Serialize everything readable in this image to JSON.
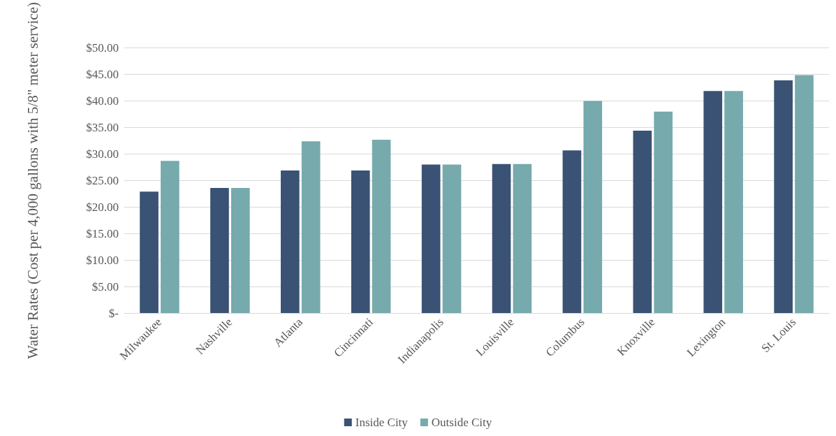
{
  "chart_data": {
    "type": "bar",
    "ylabel": "Water Rates (Cost per 4,000 gallons with 5/8\" meter service)",
    "categories": [
      "Milwaukee",
      "Nashville",
      "Atlanta",
      "Cincinnati",
      "Indianapolis",
      "Louisville",
      "Columbus",
      "Knoxville",
      "Lexington",
      "St. Louis"
    ],
    "series": [
      {
        "name": "Inside City",
        "color": "#3a5274",
        "values": [
          22.9,
          23.6,
          26.9,
          26.9,
          28.0,
          28.1,
          30.7,
          34.4,
          41.9,
          43.9
        ]
      },
      {
        "name": "Outside City",
        "color": "#76aaad",
        "values": [
          28.7,
          23.6,
          32.4,
          32.7,
          28.0,
          28.1,
          40.0,
          38.0,
          41.9,
          44.9
        ]
      }
    ],
    "ylim": [
      0,
      50
    ],
    "yticks": [
      {
        "value": 0,
        "label": "$-"
      },
      {
        "value": 5,
        "label": "$5.00"
      },
      {
        "value": 10,
        "label": "$10.00"
      },
      {
        "value": 15,
        "label": "$15.00"
      },
      {
        "value": 20,
        "label": "$20.00"
      },
      {
        "value": 25,
        "label": "$25.00"
      },
      {
        "value": 30,
        "label": "$30.00"
      },
      {
        "value": 35,
        "label": "$35.00"
      },
      {
        "value": 40,
        "label": "$40.00"
      },
      {
        "value": 45,
        "label": "$45.00"
      },
      {
        "value": 50,
        "label": "$50.00"
      }
    ],
    "grid": "y",
    "legend": "bottom"
  }
}
